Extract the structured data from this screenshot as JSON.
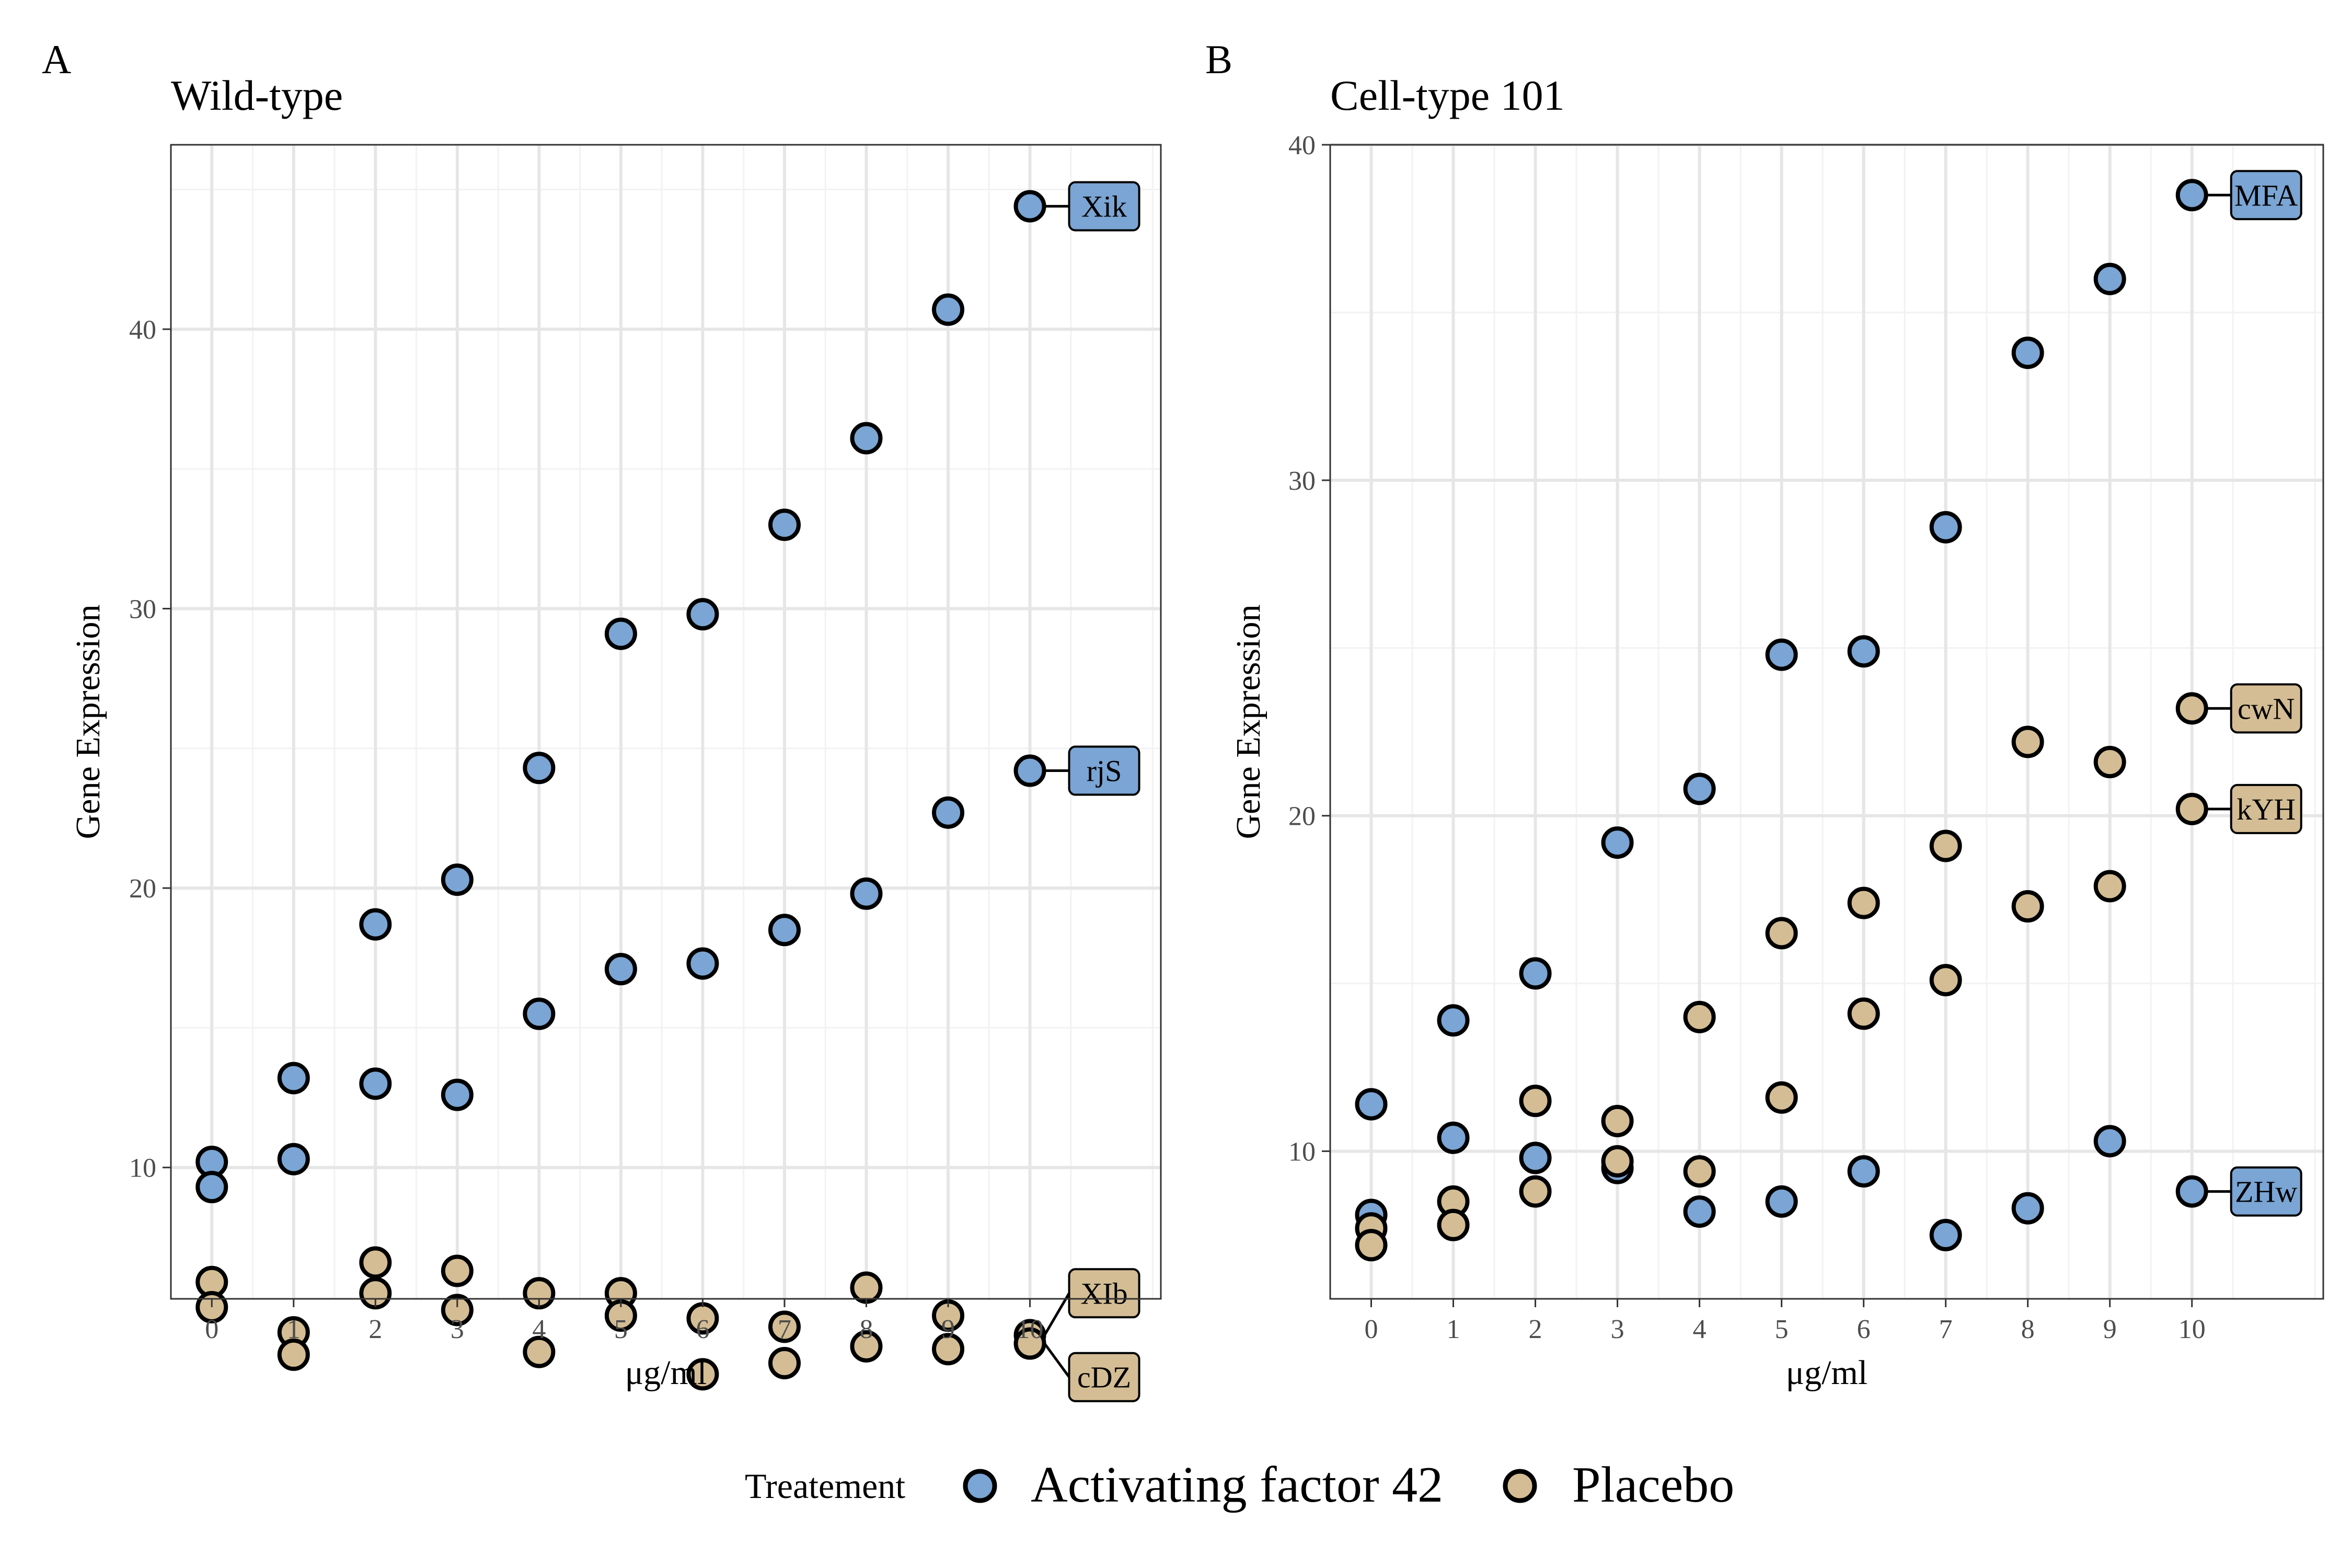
{
  "figure": {
    "legend": {
      "title": "Treatement",
      "entries": [
        {
          "label": "Activating factor 42",
          "color": "#7aa5d4"
        },
        {
          "label": "Placebo",
          "color": "#d4bd94"
        }
      ],
      "position": "bottom"
    }
  },
  "chart_data": [
    {
      "type": "scatter",
      "panel_letter": "A",
      "title": "Wild-type",
      "xlabel": "μg/ml",
      "ylabel": "Gene Expression",
      "xlim": [
        -0.5,
        11.6
      ],
      "ylim": [
        5.3,
        46.6
      ],
      "xticks": [
        0,
        1,
        2,
        3,
        4,
        5,
        6,
        7,
        8,
        9,
        10
      ],
      "yticks": [
        10,
        20,
        30,
        40
      ],
      "grid": true,
      "series": [
        {
          "name": "Activating factor 42",
          "color": "#7aa5d4",
          "points": [
            [
              0,
              10.2
            ],
            [
              1,
              13.2
            ],
            [
              2,
              18.7
            ],
            [
              3,
              20.3
            ],
            [
              4,
              24.3
            ],
            [
              5,
              29.1
            ],
            [
              6,
              29.8
            ],
            [
              7,
              33.0
            ],
            [
              8,
              36.1
            ],
            [
              9,
              40.7
            ],
            [
              10,
              44.4
            ],
            [
              0,
              9.3
            ],
            [
              1,
              10.3
            ],
            [
              2,
              13.0
            ],
            [
              3,
              12.6
            ],
            [
              4,
              15.5
            ],
            [
              5,
              17.1
            ],
            [
              6,
              17.3
            ],
            [
              7,
              18.5
            ],
            [
              8,
              19.8
            ],
            [
              9,
              22.7
            ],
            [
              10,
              24.2
            ]
          ]
        },
        {
          "name": "Placebo",
          "color": "#d4bd94",
          "points": [
            [
              0,
              5.9
            ],
            [
              1,
              4.1
            ],
            [
              2,
              6.6
            ],
            [
              3,
              6.3
            ],
            [
              4,
              5.5
            ],
            [
              5,
              5.5
            ],
            [
              6,
              4.6
            ],
            [
              7,
              4.3
            ],
            [
              8,
              5.7
            ],
            [
              9,
              4.7
            ],
            [
              10,
              4.0
            ],
            [
              0,
              5.0
            ],
            [
              1,
              3.3
            ],
            [
              2,
              5.5
            ],
            [
              3,
              4.9
            ],
            [
              4,
              3.4
            ],
            [
              5,
              4.7
            ],
            [
              6,
              2.6
            ],
            [
              7,
              3.0
            ],
            [
              8,
              3.6
            ],
            [
              9,
              3.5
            ],
            [
              10,
              3.7
            ]
          ]
        }
      ],
      "annotations": [
        {
          "text": "Xik",
          "x": 10,
          "y": 44.4,
          "label_y": 44.4,
          "series": "Activating factor 42"
        },
        {
          "text": "rjS",
          "x": 10,
          "y": 24.2,
          "label_y": 24.2,
          "series": "Activating factor 42"
        },
        {
          "text": "XIb",
          "x": 10,
          "y": 4.0,
          "label_y": 5.5,
          "series": "Placebo"
        },
        {
          "text": "cDZ",
          "x": 10,
          "y": 3.7,
          "label_y": 2.5,
          "series": "Placebo"
        }
      ]
    },
    {
      "type": "scatter",
      "panel_letter": "B",
      "title": "Cell-type 101",
      "xlabel": "μg/ml",
      "ylabel": "Gene Expression",
      "xlim": [
        -0.5,
        11.6
      ],
      "ylim": [
        5.6,
        40.0
      ],
      "xticks": [
        0,
        1,
        2,
        3,
        4,
        5,
        6,
        7,
        8,
        9,
        10
      ],
      "yticks": [
        10,
        20,
        30,
        40
      ],
      "grid": true,
      "series": [
        {
          "name": "Activating factor 42",
          "color": "#7aa5d4",
          "points": [
            [
              0,
              11.4
            ],
            [
              1,
              13.9
            ],
            [
              2,
              15.3
            ],
            [
              3,
              19.2
            ],
            [
              4,
              20.8
            ],
            [
              5,
              24.8
            ],
            [
              6,
              24.9
            ],
            [
              7,
              28.6
            ],
            [
              8,
              33.8
            ],
            [
              9,
              36.0
            ],
            [
              10,
              38.5
            ],
            [
              0,
              8.1
            ],
            [
              1,
              10.4
            ],
            [
              2,
              9.8
            ],
            [
              3,
              9.5
            ],
            [
              4,
              8.2
            ],
            [
              5,
              8.5
            ],
            [
              6,
              9.4
            ],
            [
              7,
              7.5
            ],
            [
              8,
              8.3
            ],
            [
              9,
              10.3
            ],
            [
              10,
              8.8
            ]
          ]
        },
        {
          "name": "Placebo",
          "color": "#d4bd94",
          "points": [
            [
              0,
              7.7
            ],
            [
              1,
              8.5
            ],
            [
              2,
              11.5
            ],
            [
              3,
              10.9
            ],
            [
              4,
              14.0
            ],
            [
              5,
              16.5
            ],
            [
              6,
              17.4
            ],
            [
              7,
              19.1
            ],
            [
              8,
              22.2
            ],
            [
              9,
              21.6
            ],
            [
              10,
              23.2
            ],
            [
              0,
              7.2
            ],
            [
              1,
              7.8
            ],
            [
              2,
              8.8
            ],
            [
              3,
              9.7
            ],
            [
              4,
              9.4
            ],
            [
              5,
              11.6
            ],
            [
              6,
              14.1
            ],
            [
              7,
              15.1
            ],
            [
              8,
              17.3
            ],
            [
              9,
              17.9
            ],
            [
              10,
              20.2
            ]
          ]
        }
      ],
      "annotations": [
        {
          "text": "MFA",
          "x": 10,
          "y": 38.5,
          "label_y": 38.5,
          "series": "Activating factor 42"
        },
        {
          "text": "cwN",
          "x": 10,
          "y": 23.2,
          "label_y": 23.2,
          "series": "Placebo"
        },
        {
          "text": "kYH",
          "x": 10,
          "y": 20.2,
          "label_y": 20.2,
          "series": "Placebo"
        },
        {
          "text": "ZHw",
          "x": 10,
          "y": 8.8,
          "label_y": 8.8,
          "series": "Activating factor 42"
        }
      ]
    }
  ]
}
